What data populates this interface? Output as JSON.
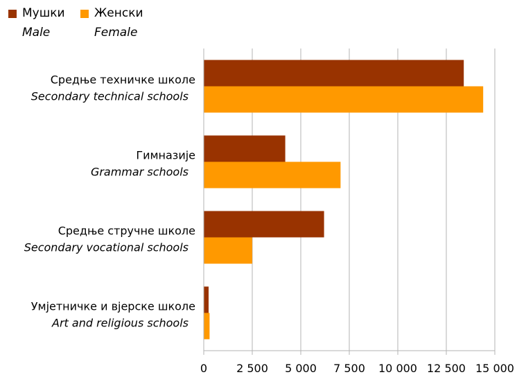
{
  "legend": {
    "male": {
      "label": "Мушки",
      "sublabel": "Male",
      "color": "#993300"
    },
    "female": {
      "label": "Женски",
      "sublabel": "Female",
      "color": "#FF9900"
    }
  },
  "chart_data": {
    "type": "bar",
    "orientation": "horizontal",
    "categories": [
      {
        "label": "Средње техничке школе",
        "sublabel": "Secondary technical schools"
      },
      {
        "label": "Гимназије",
        "sublabel": "Grammar schools"
      },
      {
        "label": "Средње стручне школе",
        "sublabel": "Secondary vocational schools"
      },
      {
        "label": "Умјетничке и вјерске школе",
        "sublabel": "Art and religious schools"
      }
    ],
    "series": [
      {
        "name": "Мушки / Male",
        "color": "#993300",
        "values": [
          13400,
          4200,
          6200,
          250
        ]
      },
      {
        "name": "Женски / Female",
        "color": "#FF9900",
        "values": [
          14400,
          7050,
          2500,
          300
        ]
      }
    ],
    "xlim": [
      0,
      15000
    ],
    "xticks": [
      0,
      2500,
      5000,
      7500,
      10000,
      12500,
      15000
    ],
    "xtick_labels": [
      "0",
      "2 500",
      "5 000",
      "7 500",
      "10 000",
      "12 500",
      "15 000"
    ],
    "grid": "vertical",
    "legend_position": "top-left"
  }
}
